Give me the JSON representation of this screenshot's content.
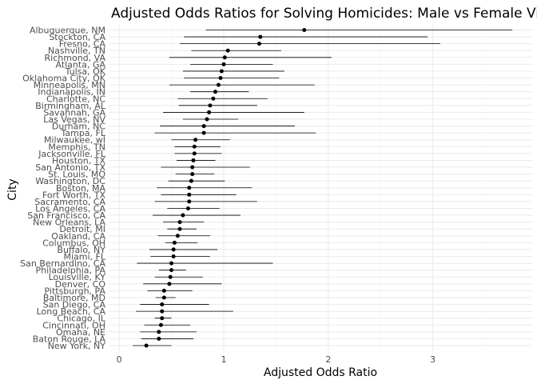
{
  "chart_data": {
    "type": "scatter",
    "title": "Adjusted Odds Ratios for Solving Homicides: Male vs Female Victims",
    "xlabel": "Adjusted Odds Ratio",
    "ylabel": "City",
    "xlim": [
      -0.1,
      3.95
    ],
    "x_ticks": [
      0,
      1,
      2,
      3
    ],
    "x_tick_labels": [
      "0",
      "1",
      "2",
      "3"
    ],
    "grid": true,
    "legend": "none",
    "cities": [
      "Albuquerque, NM",
      "Stockton, CA",
      "Fresno, CA",
      "Nashville, TN",
      "Richmond, VA",
      "Atlanta, GA",
      "Tulsa, OK",
      "Oklahoma City, OK",
      "Minneapolis, MN",
      "Indianapolis, IN",
      "Charlotte, NC",
      "Birmingham, AL",
      "Savannah, GA",
      "Las Vegas, NV",
      "Durham, NC",
      "Tampa, FL",
      "Milwaukee, wI",
      "Memphis, TN",
      "Jacksonville, FL",
      "Houston, TX",
      "San Antonio, TX",
      "St. Louis, MO",
      "Washington, DC",
      "Boston, MA",
      "Fort Worth, TX",
      "Sacramento, CA",
      "Los Angeles, CA",
      "San Francisco, CA",
      "New Orleans, LA",
      "Detroit, MI",
      "Oakland, CA",
      "Columbus, OH",
      "Buffalo, NY",
      "Miami, FL",
      "San Bernardino, CA",
      "Philadelphia, PA",
      "Louisville, KY",
      "Denver, CO",
      "Pittsburgh, PA",
      "Baltimore, MD",
      "San Diego, CA",
      "Long Beach, CA",
      "Chicago, IL",
      "Cincinnati, OH",
      "Omaha, NE",
      "Baton Rouge, LA",
      "New York, NY"
    ],
    "odds_ratio": [
      1.77,
      1.35,
      1.34,
      1.04,
      1.01,
      1.0,
      0.98,
      0.97,
      0.95,
      0.92,
      0.9,
      0.87,
      0.86,
      0.84,
      0.81,
      0.81,
      0.73,
      0.72,
      0.72,
      0.71,
      0.7,
      0.7,
      0.69,
      0.67,
      0.67,
      0.67,
      0.66,
      0.61,
      0.58,
      0.58,
      0.56,
      0.53,
      0.52,
      0.52,
      0.5,
      0.5,
      0.49,
      0.48,
      0.43,
      0.43,
      0.41,
      0.41,
      0.41,
      0.4,
      0.38,
      0.38,
      0.26
    ],
    "ci_low": [
      0.83,
      0.62,
      0.58,
      0.69,
      0.48,
      0.68,
      0.61,
      0.62,
      0.48,
      0.68,
      0.56,
      0.57,
      0.42,
      0.61,
      0.39,
      0.34,
      0.5,
      0.53,
      0.53,
      0.55,
      0.4,
      0.54,
      0.47,
      0.36,
      0.4,
      0.34,
      0.46,
      0.32,
      0.42,
      0.46,
      0.37,
      0.44,
      0.29,
      0.3,
      0.17,
      0.38,
      0.34,
      0.23,
      0.27,
      0.35,
      0.2,
      0.16,
      0.34,
      0.24,
      0.2,
      0.21,
      0.13
    ],
    "ci_high": [
      3.76,
      2.95,
      3.07,
      1.55,
      2.03,
      1.47,
      1.58,
      1.53,
      1.87,
      1.24,
      1.42,
      1.32,
      1.77,
      1.14,
      1.68,
      1.88,
      1.06,
      0.97,
      0.98,
      0.92,
      1.25,
      0.91,
      1.01,
      1.27,
      1.12,
      1.32,
      0.96,
      1.16,
      0.81,
      0.74,
      0.87,
      0.75,
      0.94,
      0.87,
      1.47,
      0.64,
      0.8,
      0.98,
      0.7,
      0.54,
      0.86,
      1.09,
      0.5,
      0.68,
      0.74,
      0.71,
      0.5
    ]
  }
}
